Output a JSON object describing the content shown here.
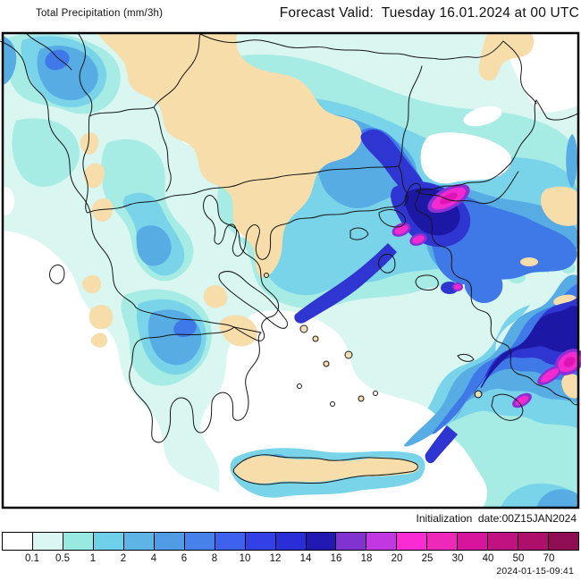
{
  "header": {
    "product_label": "Total Precipitation (mm/3h)",
    "forecast_label": "Forecast Valid:  Tuesday 16.01.2024 at 00 UTC"
  },
  "footer": {
    "initialization_label": "Initialization  date:00Z15JAN2024",
    "generated_timestamp": "2024-01-15-09:41"
  },
  "legend": {
    "units": "mm/3h",
    "tick_labels": [
      "0.1",
      "0.5",
      "1",
      "2",
      "4",
      "6",
      "8",
      "10",
      "12",
      "14",
      "16",
      "18",
      "20",
      "25",
      "30",
      "40",
      "50",
      "70"
    ],
    "colors": [
      "#ffffff",
      "#dcf7f3",
      "#97e9e1",
      "#6ed0e9",
      "#5fb4e6",
      "#4f9ce4",
      "#4682ea",
      "#3e62ee",
      "#3340e6",
      "#2a2ed6",
      "#2119b2",
      "#8033cf",
      "#c138e2",
      "#fb2bd3",
      "#ee28b8",
      "#d6149c",
      "#c11281",
      "#ae0f6b",
      "#8f0d52"
    ]
  },
  "map": {
    "frame_color": "#000000",
    "coastline_color": "#161616",
    "dry_land_color": "#f6dda9",
    "no_precip_color": "#ffffff",
    "light_precip_color": "#d9f6f1",
    "heavy_core_color": "#f32ad0"
  }
}
